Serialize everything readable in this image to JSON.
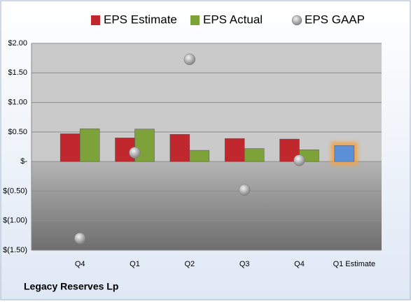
{
  "chart_data": {
    "type": "bar",
    "legend": "top",
    "footer": "Legacy Reserves Lp",
    "categories": [
      "Q4",
      "Q1",
      "Q2",
      "Q3",
      "Q4",
      "Q1 Estimate"
    ],
    "series": [
      {
        "name": "EPS Estimate",
        "color": "#c0282d",
        "values": [
          0.47,
          0.4,
          0.46,
          0.39,
          0.38,
          0.27
        ],
        "colors": [
          "#c0282d",
          "#c0282d",
          "#c0282d",
          "#c0282d",
          "#c0282d",
          "#5b8fd6"
        ]
      },
      {
        "name": "EPS Actual",
        "color": "#7ea23a",
        "values": [
          0.555,
          0.55,
          0.19,
          0.22,
          0.2,
          null
        ]
      },
      {
        "name": "EPS GAAP",
        "color": "#a0a0a0",
        "mark": "circle",
        "values": [
          -1.3,
          0.15,
          1.73,
          -0.48,
          0.02,
          null
        ]
      }
    ],
    "ylim": [
      -1.5,
      2.0
    ],
    "yticks": [
      {
        "value": -1.5,
        "label": "$(1.50)"
      },
      {
        "value": -1.0,
        "label": "$(1.00)"
      },
      {
        "value": -0.5,
        "label": "$(0.50)"
      },
      {
        "value": 0,
        "label": "$-"
      },
      {
        "value": 0.5,
        "label": "$0.50"
      },
      {
        "value": 1.0,
        "label": "$1.00"
      },
      {
        "value": 1.5,
        "label": "$1.50"
      },
      {
        "value": 2.0,
        "label": "$2.00"
      }
    ],
    "grid": true
  }
}
